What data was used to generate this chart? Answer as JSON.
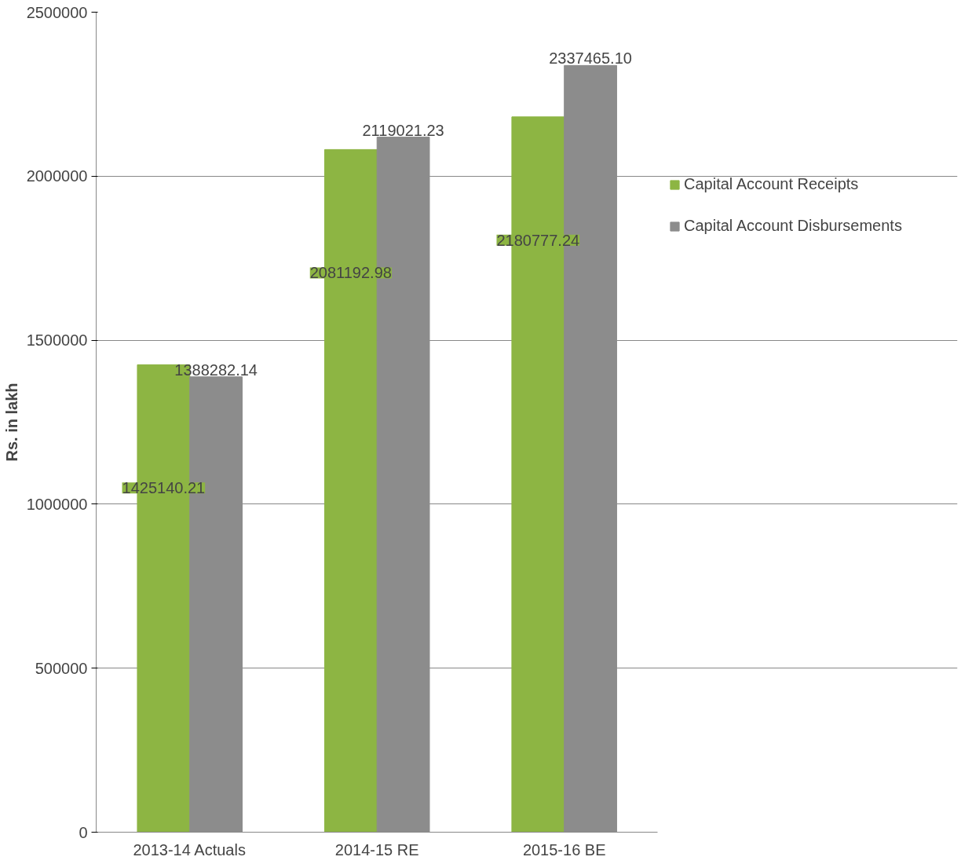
{
  "chart_data": {
    "type": "bar",
    "ylabel": "Rs. in lakh",
    "categories": [
      "2013-14 Actuals",
      "2014-15 RE",
      "2015-16 BE"
    ],
    "series": [
      {
        "name": "Capital Account Receipts",
        "color": "#8db543",
        "values": [
          1425140.21,
          2081192.98,
          2180777.24
        ],
        "value_labels": [
          "1425140.21",
          "2081192.98",
          "2180777.24"
        ]
      },
      {
        "name": "Capital Account Disbursements",
        "color": "#8c8c8c",
        "values": [
          1388282.14,
          2119021.23,
          2337465.1
        ],
        "value_labels": [
          "1388282.14",
          "2119021.23",
          "2337465.10"
        ]
      }
    ],
    "ylim": [
      0,
      2500000
    ],
    "yticks": [
      0,
      500000,
      1000000,
      1500000,
      2000000,
      2500000
    ],
    "grid": "y",
    "legend": "right"
  }
}
